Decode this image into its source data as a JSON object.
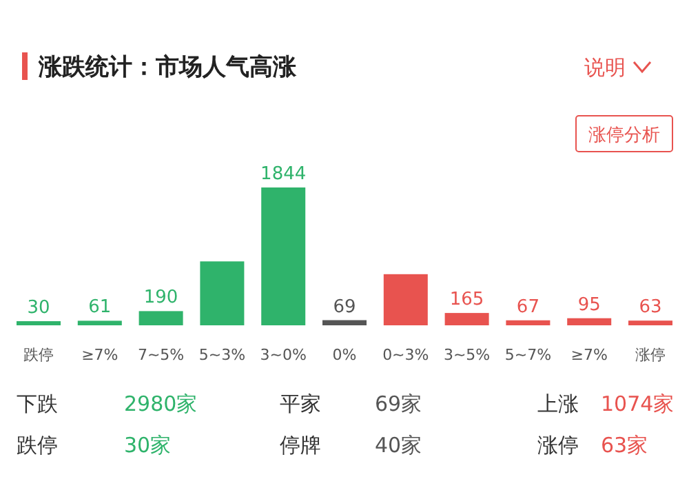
{
  "chart_data": {
    "type": "bar",
    "title": "涨跌统计：市场人气高涨",
    "categories": [
      "跌停",
      "≥7%",
      "7~5%",
      "5~3%",
      "3~0%",
      "0%",
      "0~3%",
      "3~5%",
      "5~7%",
      "≥7%",
      "涨停"
    ],
    "values": [
      30,
      61,
      190,
      855,
      1844,
      69,
      684,
      165,
      67,
      95,
      63
    ],
    "value_labels": [
      "30",
      "61",
      "190",
      null,
      "1844",
      "69",
      null,
      "165",
      "67",
      "95",
      "63"
    ],
    "colors": [
      "#2fb36b",
      "#2fb36b",
      "#2fb36b",
      "#2fb36b",
      "#2fb36b",
      "#555555",
      "#e8534f",
      "#e8534f",
      "#e8534f",
      "#e8534f",
      "#e8534f"
    ],
    "annotations": [
      "说明",
      "涨停分析",
      "下跌",
      "2980家",
      "平家",
      "69家",
      "上涨",
      "1074家",
      "跌停",
      "30家",
      "停牌",
      "40家",
      "涨停",
      "63家"
    ]
  }
}
